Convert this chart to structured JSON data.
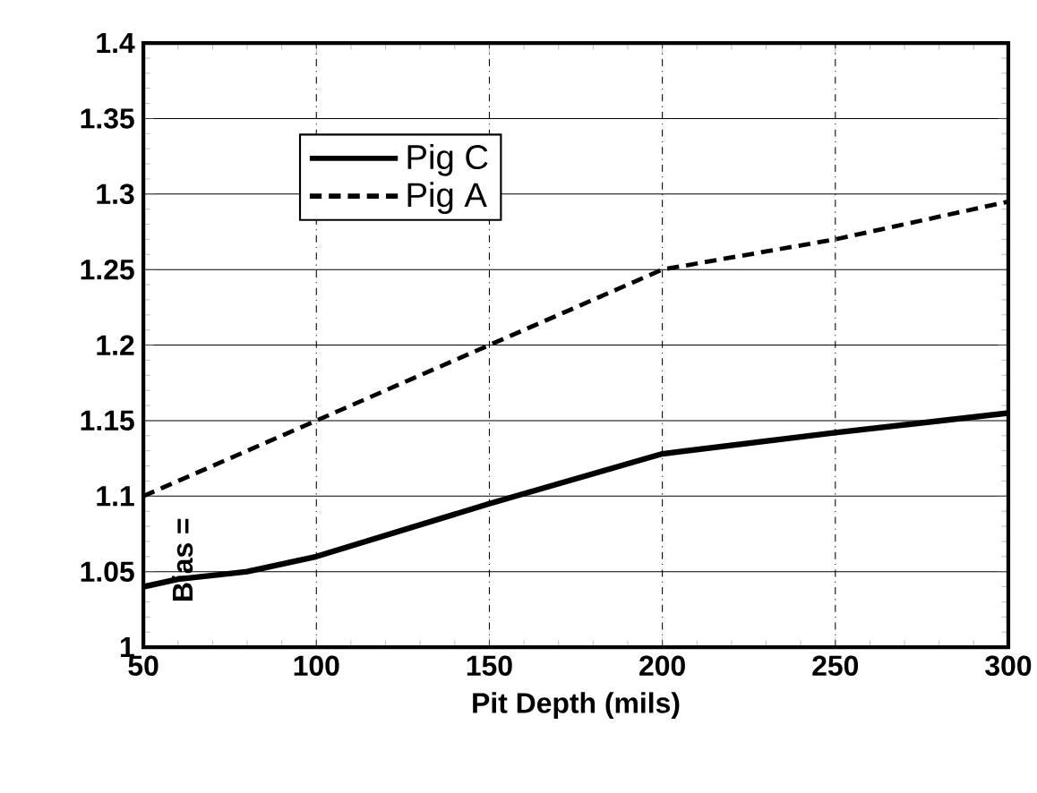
{
  "chart_data": {
    "type": "line",
    "xlabel": "Pit Depth (mils)",
    "xlim": [
      50,
      300
    ],
    "xticks": [
      50,
      100,
      150,
      200,
      250,
      300
    ],
    "ylim": [
      1,
      1.4
    ],
    "yticks": [
      1,
      1.05,
      1.1,
      1.15,
      1.2,
      1.25,
      1.3,
      1.35,
      1.4
    ],
    "grid": true,
    "legend": "top left",
    "marker": "none",
    "annotations": [
      "Bias ="
    ],
    "series": [
      {
        "name": "Pig C",
        "color": "#000000",
        "line_style": "solid",
        "x": [
          50,
          60,
          80,
          100,
          150,
          200,
          250,
          300
        ],
        "values": [
          1.04,
          1.045,
          1.05,
          1.06,
          1.095,
          1.128,
          1.142,
          1.155
        ]
      },
      {
        "name": "Pig A",
        "color": "#000000",
        "line_style": "dashed",
        "x": [
          50,
          100,
          150,
          200,
          250,
          300
        ],
        "values": [
          1.1,
          1.15,
          1.2,
          1.25,
          1.27,
          1.295
        ]
      }
    ]
  }
}
